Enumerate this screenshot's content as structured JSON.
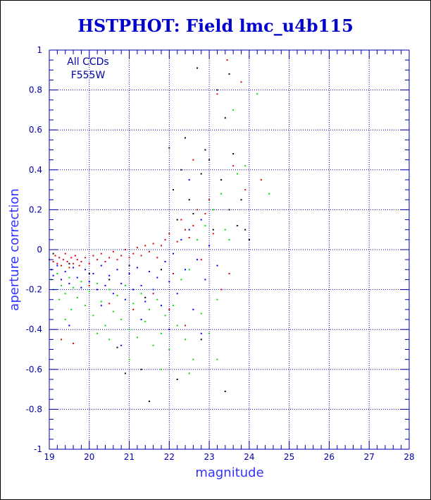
{
  "chart_data": {
    "type": "scatter",
    "title": "HSTPHOT: Field lmc_u4b115",
    "xlabel": "magnitude",
    "ylabel": "aperture correction",
    "xlim": [
      19,
      28
    ],
    "ylim": [
      -1,
      1
    ],
    "xticks": [
      "19",
      "20",
      "21",
      "22",
      "23",
      "24",
      "25",
      "26",
      "27",
      "28"
    ],
    "yticks": [
      "-1",
      "-0.8",
      "-0.6",
      "-0.4",
      "-0.2",
      "0",
      "0.2",
      "0.4",
      "0.6",
      "0.8",
      "1"
    ],
    "grid": true,
    "annotation_lines": [
      "All CCDs",
      "F555W"
    ],
    "colors": {
      "axis": "#0000aa",
      "grid": "#0000aa",
      "title": "#0000cc",
      "series_red": "#e00000",
      "series_green": "#00dd00",
      "series_blue": "#0000ff",
      "series_black": "#000000"
    },
    "series": [
      {
        "color": "#e00000",
        "points": [
          [
            19.0,
            -0.05
          ],
          [
            19.1,
            -0.06
          ],
          [
            19.15,
            -0.03
          ],
          [
            19.2,
            -0.07
          ],
          [
            19.25,
            -0.04
          ],
          [
            19.3,
            -0.08
          ],
          [
            19.35,
            -0.05
          ],
          [
            19.4,
            -0.02
          ],
          [
            19.45,
            -0.06
          ],
          [
            19.5,
            -0.09
          ],
          [
            19.55,
            -0.04
          ],
          [
            19.6,
            -0.07
          ],
          [
            19.65,
            -0.03
          ],
          [
            19.7,
            -0.05
          ],
          [
            19.75,
            -0.08
          ],
          [
            19.8,
            -0.06
          ],
          [
            19.9,
            -0.04
          ],
          [
            20.0,
            -0.07
          ],
          [
            20.1,
            -0.03
          ],
          [
            20.2,
            -0.05
          ],
          [
            20.3,
            -0.02
          ],
          [
            20.4,
            -0.06
          ],
          [
            20.5,
            -0.04
          ],
          [
            20.6,
            -0.01
          ],
          [
            20.7,
            -0.05
          ],
          [
            20.8,
            -0.03
          ],
          [
            20.9,
            0.0
          ],
          [
            21.0,
            -0.04
          ],
          [
            21.1,
            -0.02
          ],
          [
            21.2,
            0.01
          ],
          [
            21.3,
            -0.03
          ],
          [
            21.4,
            0.02
          ],
          [
            21.5,
            -0.01
          ],
          [
            21.6,
            0.03
          ],
          [
            21.7,
            -0.04
          ],
          [
            21.8,
            0.02
          ],
          [
            21.9,
            0.05
          ],
          [
            22.0,
            0.08
          ],
          [
            22.1,
            -0.12
          ],
          [
            22.2,
            0.04
          ],
          [
            22.3,
            0.15
          ],
          [
            22.4,
            0.1
          ],
          [
            22.5,
            0.06
          ],
          [
            22.6,
            0.12
          ],
          [
            22.7,
            0.2
          ],
          [
            22.8,
            -0.05
          ],
          [
            22.9,
            0.18
          ],
          [
            23.0,
            0.25
          ],
          [
            23.1,
            0.08
          ],
          [
            23.2,
            0.78
          ],
          [
            23.3,
            -0.2
          ],
          [
            23.45,
            0.95
          ],
          [
            23.6,
            0.42
          ],
          [
            23.8,
            0.84
          ],
          [
            23.9,
            0.3
          ],
          [
            24.3,
            0.35
          ],
          [
            19.3,
            -0.45
          ],
          [
            19.6,
            -0.47
          ],
          [
            20.0,
            -0.18
          ],
          [
            20.5,
            -0.27
          ],
          [
            21.1,
            -0.3
          ],
          [
            21.6,
            -0.22
          ],
          [
            22.0,
            -0.3
          ],
          [
            22.4,
            -0.38
          ],
          [
            23.5,
            -0.12
          ],
          [
            22.6,
            0.45
          ]
        ]
      },
      {
        "color": "#00dd00",
        "points": [
          [
            19.05,
            -0.15
          ],
          [
            19.1,
            -0.2
          ],
          [
            19.2,
            -0.12
          ],
          [
            19.25,
            -0.25
          ],
          [
            19.3,
            -0.18
          ],
          [
            19.4,
            -0.22
          ],
          [
            19.5,
            -0.14
          ],
          [
            19.55,
            -0.3
          ],
          [
            19.6,
            -0.19
          ],
          [
            19.7,
            -0.24
          ],
          [
            19.8,
            -0.16
          ],
          [
            19.9,
            -0.28
          ],
          [
            20.0,
            -0.21
          ],
          [
            20.1,
            -0.33
          ],
          [
            20.2,
            -0.17
          ],
          [
            20.3,
            -0.26
          ],
          [
            20.4,
            -0.38
          ],
          [
            20.5,
            -0.2
          ],
          [
            20.6,
            -0.31
          ],
          [
            20.7,
            -0.23
          ],
          [
            20.8,
            -0.35
          ],
          [
            20.9,
            -0.18
          ],
          [
            21.0,
            -0.4
          ],
          [
            21.1,
            -0.27
          ],
          [
            21.2,
            -0.44
          ],
          [
            21.3,
            -0.22
          ],
          [
            21.4,
            -0.36
          ],
          [
            21.5,
            -0.3
          ],
          [
            21.6,
            -0.48
          ],
          [
            21.7,
            -0.25
          ],
          [
            21.8,
            -0.42
          ],
          [
            21.9,
            -0.33
          ],
          [
            22.0,
            -0.5
          ],
          [
            22.1,
            -0.28
          ],
          [
            22.2,
            -0.38
          ],
          [
            22.3,
            -0.15
          ],
          [
            22.4,
            -0.45
          ],
          [
            22.5,
            -0.1
          ],
          [
            22.6,
            -0.55
          ],
          [
            22.7,
            0.05
          ],
          [
            22.8,
            -0.32
          ],
          [
            22.9,
            0.12
          ],
          [
            23.0,
            -0.42
          ],
          [
            23.1,
            0.2
          ],
          [
            23.2,
            -0.25
          ],
          [
            23.3,
            0.28
          ],
          [
            23.4,
            0.1
          ],
          [
            23.5,
            0.05
          ],
          [
            23.6,
            0.7
          ],
          [
            23.7,
            0.38
          ],
          [
            23.9,
            0.42
          ],
          [
            24.2,
            0.78
          ],
          [
            24.5,
            0.28
          ],
          [
            20.5,
            -0.45
          ],
          [
            21.0,
            -0.55
          ],
          [
            21.8,
            -0.6
          ],
          [
            22.5,
            -0.62
          ],
          [
            23.2,
            -0.55
          ],
          [
            19.4,
            -0.35
          ],
          [
            20.2,
            -0.42
          ]
        ]
      },
      {
        "color": "#0000ff",
        "points": [
          [
            19.05,
            -0.1
          ],
          [
            19.1,
            -0.13
          ],
          [
            19.2,
            -0.08
          ],
          [
            19.3,
            -0.15
          ],
          [
            19.4,
            -0.11
          ],
          [
            19.5,
            -0.17
          ],
          [
            19.6,
            -0.09
          ],
          [
            19.7,
            -0.14
          ],
          [
            19.8,
            -0.19
          ],
          [
            19.9,
            -0.1
          ],
          [
            20.0,
            -0.16
          ],
          [
            20.1,
            -0.12
          ],
          [
            20.2,
            -0.2
          ],
          [
            20.3,
            -0.08
          ],
          [
            20.4,
            -0.18
          ],
          [
            20.5,
            -0.13
          ],
          [
            20.6,
            -0.22
          ],
          [
            20.7,
            -0.1
          ],
          [
            20.8,
            -0.17
          ],
          [
            20.9,
            -0.25
          ],
          [
            21.0,
            -0.12
          ],
          [
            21.1,
            -0.2
          ],
          [
            21.2,
            -0.09
          ],
          [
            21.3,
            -0.18
          ],
          [
            21.4,
            -0.26
          ],
          [
            21.5,
            -0.11
          ],
          [
            21.6,
            -0.2
          ],
          [
            21.7,
            -0.14
          ],
          [
            21.8,
            -0.28
          ],
          [
            21.9,
            -0.06
          ],
          [
            22.0,
            -0.16
          ],
          [
            22.1,
            -0.02
          ],
          [
            22.2,
            -0.22
          ],
          [
            22.3,
            0.05
          ],
          [
            22.4,
            -0.1
          ],
          [
            22.5,
            0.1
          ],
          [
            22.6,
            -0.3
          ],
          [
            22.7,
            -0.05
          ],
          [
            22.8,
            0.15
          ],
          [
            22.9,
            -0.15
          ],
          [
            23.0,
            0.02
          ],
          [
            23.2,
            -0.08
          ],
          [
            19.5,
            -0.38
          ],
          [
            20.3,
            -0.28
          ],
          [
            20.8,
            -0.48
          ],
          [
            21.3,
            -0.35
          ],
          [
            22.0,
            -0.4
          ],
          [
            22.8,
            -0.42
          ],
          [
            22.5,
            0.35
          ]
        ]
      },
      {
        "color": "#000000",
        "points": [
          [
            19.1,
            -0.02
          ],
          [
            19.5,
            -0.07
          ],
          [
            20.0,
            -0.12
          ],
          [
            20.5,
            -0.15
          ],
          [
            20.7,
            -0.49
          ],
          [
            21.0,
            -0.08
          ],
          [
            21.4,
            -0.24
          ],
          [
            21.5,
            -0.76
          ],
          [
            21.8,
            -0.1
          ],
          [
            22.0,
            0.51
          ],
          [
            22.1,
            0.3
          ],
          [
            22.2,
            0.15
          ],
          [
            22.3,
            0.4
          ],
          [
            22.4,
            0.56
          ],
          [
            22.5,
            0.25
          ],
          [
            22.6,
            0.18
          ],
          [
            22.7,
            0.91
          ],
          [
            22.8,
            0.38
          ],
          [
            22.9,
            0.5
          ],
          [
            23.0,
            0.45
          ],
          [
            23.1,
            0.1
          ],
          [
            23.2,
            0.8
          ],
          [
            23.3,
            0.35
          ],
          [
            23.4,
            0.66
          ],
          [
            23.5,
            0.2
          ],
          [
            23.6,
            0.48
          ],
          [
            23.7,
            0.12
          ],
          [
            23.8,
            0.25
          ],
          [
            23.9,
            0.1
          ],
          [
            24.0,
            0.05
          ],
          [
            23.4,
            -0.71
          ],
          [
            22.8,
            -0.45
          ],
          [
            22.2,
            -0.65
          ],
          [
            21.3,
            -0.6
          ],
          [
            20.9,
            -0.62
          ],
          [
            23.5,
            0.88
          ]
        ]
      }
    ]
  }
}
